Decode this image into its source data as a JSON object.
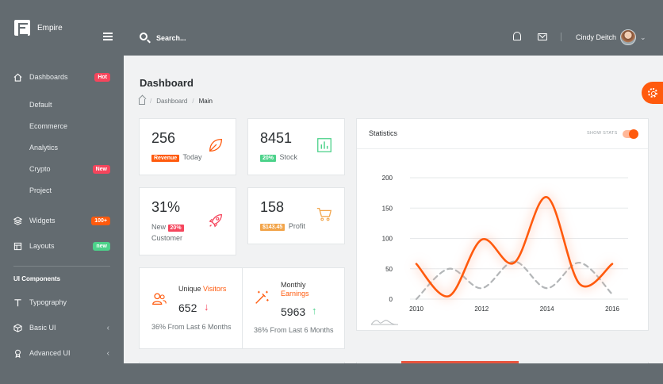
{
  "brand": {
    "name": "Empire"
  },
  "topbar": {
    "search_placeholder": "Search...",
    "user_name": "Cindy Deitch"
  },
  "sidebar": {
    "items": [
      {
        "label": "Dashboards",
        "badge": "Hot"
      },
      {
        "label": "Default"
      },
      {
        "label": "Ecommerce"
      },
      {
        "label": "Analytics"
      },
      {
        "label": "Crypto",
        "badge": "New"
      },
      {
        "label": "Project"
      },
      {
        "label": "Widgets",
        "badge": "100+"
      },
      {
        "label": "Layouts",
        "badge": "new"
      },
      {
        "label": "Typography"
      },
      {
        "label": "Basic UI"
      },
      {
        "label": "Advanced UI"
      }
    ],
    "section_title": "UI Components"
  },
  "page": {
    "title": "Dashboard",
    "breadcrumb": [
      "Dashboard",
      "Main"
    ]
  },
  "stats": [
    {
      "value": "256",
      "tag": "Revenue",
      "suffix": "Today",
      "icon": "leaf-icon",
      "color": "#ff5a0d"
    },
    {
      "value": "8451",
      "tag": "20%",
      "suffix": "Stock",
      "icon": "bar-chart-icon",
      "color": "#4cd28a"
    },
    {
      "value": "31%",
      "prefix": "New",
      "tag": "20%",
      "suffix": "Customer",
      "icon": "rocket-icon",
      "color": "#f5455c"
    },
    {
      "value": "158",
      "tag": "$143.45",
      "suffix": "Profit",
      "icon": "cart-icon",
      "color": "#f2a54b"
    }
  ],
  "mini_stats": [
    {
      "title_a": "Unique",
      "title_b": "Visitors",
      "value": "652",
      "trend": "down",
      "note": "36% From Last 6 Months",
      "icon": "users-icon"
    },
    {
      "title_a": "Monthly",
      "title_b": "Earnings",
      "value": "5963",
      "trend": "up",
      "note": "36% From Last 6 Months",
      "icon": "magic-wand-icon"
    }
  ],
  "statistics": {
    "title": "Statistics",
    "toggle_label": "SHOW STATS",
    "toggle_on": true
  },
  "chart_data": {
    "type": "line",
    "x": [
      2010,
      2011,
      2012,
      2013,
      2014,
      2015,
      2016
    ],
    "xticks": [
      "2010",
      "2012",
      "2014",
      "2016"
    ],
    "yticks": [
      "0",
      "50",
      "100",
      "150",
      "200"
    ],
    "ylim": [
      0,
      200
    ],
    "grid": true,
    "series": [
      {
        "values": [
          58,
          5,
          98,
          60,
          168,
          25,
          58
        ],
        "color": "#ff5a0d",
        "style": "solid"
      },
      {
        "values": [
          0,
          50,
          18,
          62,
          18,
          60,
          8
        ],
        "color": "#b3b6b8",
        "style": "dashed"
      }
    ]
  },
  "colors": {
    "accent": "#ff5a0d",
    "sidebar": "#636b70",
    "success": "#4cd28a",
    "danger": "#f5455c"
  }
}
